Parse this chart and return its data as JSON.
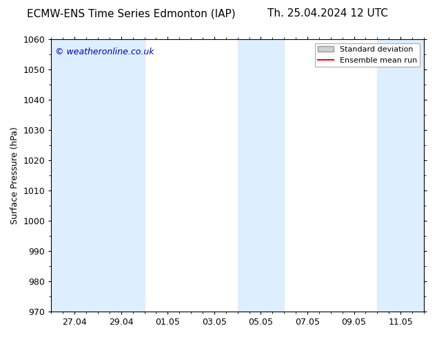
{
  "title_left": "ECMW-ENS Time Series Edmonton (IAP)",
  "title_right": "Th. 25.04.2024 12 UTC",
  "ylabel": "Surface Pressure (hPa)",
  "ylim": [
    970,
    1060
  ],
  "yticks": [
    970,
    980,
    990,
    1000,
    1010,
    1020,
    1030,
    1040,
    1050,
    1060
  ],
  "xtick_labels": [
    "27.04",
    "29.04",
    "01.05",
    "03.05",
    "05.05",
    "07.05",
    "09.05",
    "11.05"
  ],
  "xtick_positions": [
    1.0,
    3.0,
    5.0,
    7.0,
    9.0,
    11.0,
    13.0,
    15.0
  ],
  "xlim": [
    0.0,
    16.0
  ],
  "shaded_bands": [
    {
      "x_start": 0.0,
      "x_end": 2.0,
      "color": "#ddeeff"
    },
    {
      "x_start": 2.0,
      "x_end": 4.0,
      "color": "#ddeeff"
    },
    {
      "x_start": 8.0,
      "x_end": 10.0,
      "color": "#ddeeff"
    },
    {
      "x_start": 14.0,
      "x_end": 16.0,
      "color": "#ddeeff"
    }
  ],
  "watermark_text": "© weatheronline.co.uk",
  "watermark_color": "#0000bb",
  "legend_std_label": "Standard deviation",
  "legend_mean_label": "Ensemble mean run",
  "legend_mean_color": "#ff0000",
  "legend_std_facecolor": "#d0d0d0",
  "legend_std_edgecolor": "#999999",
  "bg_color": "#ffffff",
  "title_fontsize": 11,
  "label_fontsize": 9,
  "tick_fontsize": 9,
  "watermark_fontsize": 9
}
